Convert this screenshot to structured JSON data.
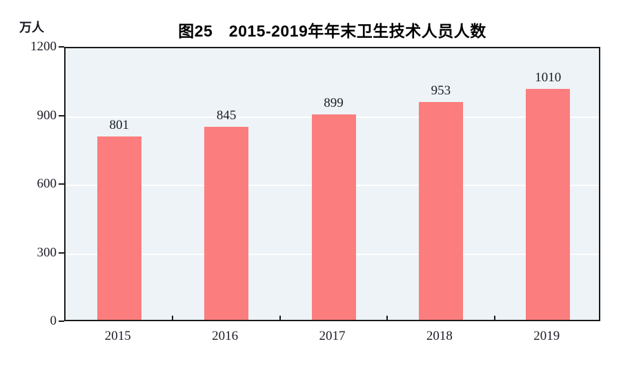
{
  "chart_data": {
    "type": "bar",
    "title": "图25　2015-2019年年末卫生技术人员人数",
    "unit_label": "万人",
    "categories": [
      "2015",
      "2016",
      "2017",
      "2018",
      "2019"
    ],
    "values": [
      801,
      845,
      899,
      953,
      1010
    ],
    "ylim": [
      0,
      1200
    ],
    "yticks": [
      0,
      300,
      600,
      900,
      1200
    ],
    "grid": "horizontal-white",
    "legend": "none",
    "colors": {
      "bar": "#fc7d7d",
      "plot_background": "#edf3f7",
      "axis": "#1a1a1a",
      "text": "#1b1b26",
      "gridline": "#ffffff"
    }
  }
}
